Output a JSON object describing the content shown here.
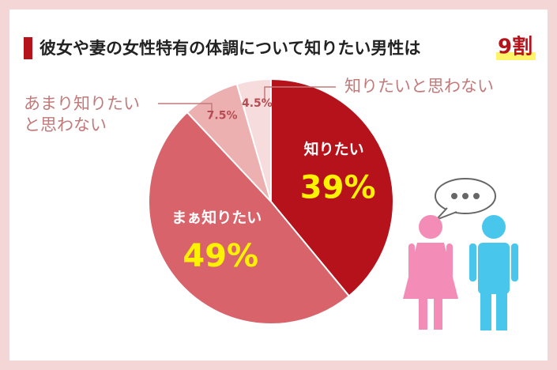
{
  "chart_data": {
    "type": "pie",
    "title": "彼女や妻の女性特有の体調について知りたい男性は",
    "title_highlight": "9割",
    "categories": [
      "知りたい",
      "まぁ知りたい",
      "あまり知りたいと思わない",
      "知りたいと思わない"
    ],
    "values": [
      39,
      49,
      7.5,
      4.5
    ],
    "value_labels": [
      "39%",
      "49%",
      "7.5%",
      "4.5%"
    ],
    "colors": [
      "#b5121b",
      "#d9636b",
      "#edb0b0",
      "#f6dcdc"
    ]
  }
}
